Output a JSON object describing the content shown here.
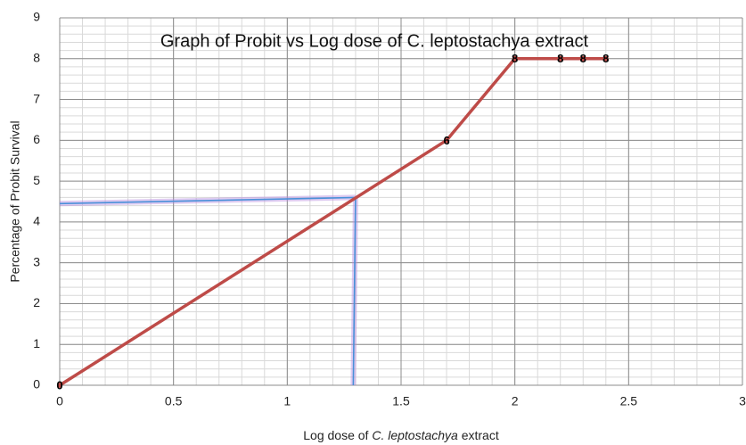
{
  "chart_data": {
    "type": "line",
    "title": "Graph of Probit vs Log dose of C. leptostachya extract",
    "y_label": "Percentage of Probit Survival",
    "x_label": [
      {
        "text": "Log dose of ",
        "italic": false
      },
      {
        "text": "C. leptostachya",
        "italic": true
      },
      {
        "text": " extract",
        "italic": false
      }
    ],
    "x": [
      0,
      1.7,
      2,
      2.2,
      2.3,
      2.4
    ],
    "series": [
      {
        "color": "#be4b48",
        "values": [
          0,
          6,
          8,
          8,
          8,
          8
        ]
      }
    ],
    "guides": [
      {
        "color": "#4a90d9",
        "x": [
          0,
          1.3
        ],
        "y": [
          4.45,
          4.6
        ]
      },
      {
        "color": "#4a90d9",
        "x": [
          1.3,
          1.29
        ],
        "y": [
          4.6,
          0
        ]
      }
    ],
    "xlim": [
      0,
      3
    ],
    "xticks": [
      0,
      0.5,
      1,
      1.5,
      2,
      2.5,
      3
    ],
    "ylim": [
      0,
      9
    ],
    "yticks": [
      0,
      1,
      2,
      3,
      4,
      5,
      6,
      7,
      8,
      9
    ],
    "grid": true,
    "minor_grid": {
      "x": 0.1,
      "y": 0.2
    }
  }
}
